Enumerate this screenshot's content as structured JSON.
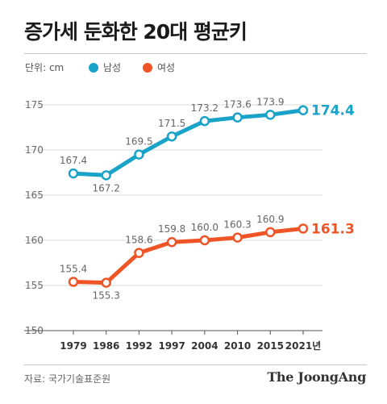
{
  "header": {
    "title": "증가세 둔화한 20대 평균키",
    "unit_label": "단위: cm"
  },
  "legend": {
    "male_label": "남성",
    "female_label": "여성"
  },
  "colors": {
    "male": "#1aa3c9",
    "female": "#ef5426"
  },
  "chart_data": {
    "type": "line",
    "title": "증가세 둔화한 20대 평균키",
    "ylabel": "",
    "xlabel": "",
    "categories": [
      "1979",
      "1986",
      "1992",
      "1997",
      "2004",
      "2010",
      "2015",
      "2021년"
    ],
    "ylim": [
      150,
      175
    ],
    "yticks": [
      150,
      155,
      160,
      165,
      170,
      175
    ],
    "grid": true,
    "legend_position": "top-left",
    "series": [
      {
        "name": "남성",
        "values": [
          167.4,
          167.2,
          169.5,
          171.5,
          173.2,
          173.6,
          173.9,
          174.4
        ],
        "labels": [
          "167.4",
          "167.2",
          "169.5",
          "171.5",
          "173.2",
          "173.6",
          "173.9",
          "174.4"
        ]
      },
      {
        "name": "여성",
        "values": [
          155.4,
          155.3,
          158.6,
          159.8,
          160.0,
          160.3,
          160.9,
          161.3
        ],
        "labels": [
          "155.4",
          "155.3",
          "158.6",
          "159.8",
          "160.0",
          "160.3",
          "160.9",
          "161.3"
        ]
      }
    ]
  },
  "footer": {
    "source": "자료: 국가기술표준원",
    "logo": "The JoongAng"
  }
}
